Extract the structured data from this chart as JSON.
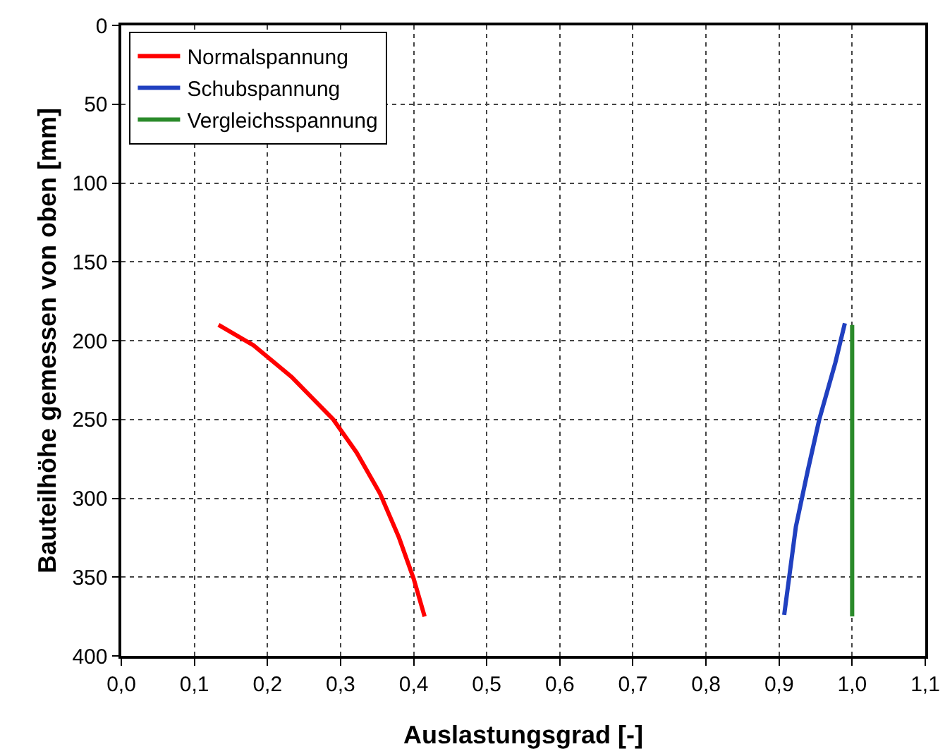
{
  "chart_data": {
    "type": "line",
    "xlabel": "Auslastungsgrad [-]",
    "ylabel": "Bauteilhöhe gemessen von oben [mm]",
    "xlim": [
      0,
      1.1
    ],
    "xticks": [
      {
        "value": 0,
        "label": "0,0"
      },
      {
        "value": 0.1,
        "label": "0,1"
      },
      {
        "value": 0.2,
        "label": "0,2"
      },
      {
        "value": 0.3,
        "label": "0,3"
      },
      {
        "value": 0.4,
        "label": "0,4"
      },
      {
        "value": 0.5,
        "label": "0,5"
      },
      {
        "value": 0.6,
        "label": "0,6"
      },
      {
        "value": 0.7,
        "label": "0,7"
      },
      {
        "value": 0.8,
        "label": "0,8"
      },
      {
        "value": 0.9,
        "label": "0,9"
      },
      {
        "value": 1,
        "label": "1,0"
      },
      {
        "value": 1.1,
        "label": "1,1"
      }
    ],
    "ylim": [
      400,
      0
    ],
    "yticks": [
      0,
      50,
      100,
      150,
      200,
      250,
      300,
      350,
      400
    ],
    "grid": true,
    "legend": "top left",
    "line_style": "solid",
    "marker": "none",
    "series": [
      {
        "name": "Normalspannung",
        "color": "#ff0000",
        "x": [
          0.133,
          0.181,
          0.233,
          0.29,
          0.322,
          0.354,
          0.38,
          0.4,
          0.415
        ],
        "values": [
          190,
          203,
          223,
          250,
          271,
          297,
          325,
          351,
          375
        ]
      },
      {
        "name": "Schubspannung",
        "color": "#2040c0",
        "x": [
          0.99,
          0.977,
          0.955,
          0.939,
          0.923,
          0.907
        ],
        "values": [
          189,
          214,
          250,
          283,
          318,
          374
        ]
      },
      {
        "name": "Vergleichsspannung",
        "color": "#2a8a2a",
        "x": [
          1,
          1
        ],
        "values": [
          190,
          375
        ]
      }
    ]
  }
}
